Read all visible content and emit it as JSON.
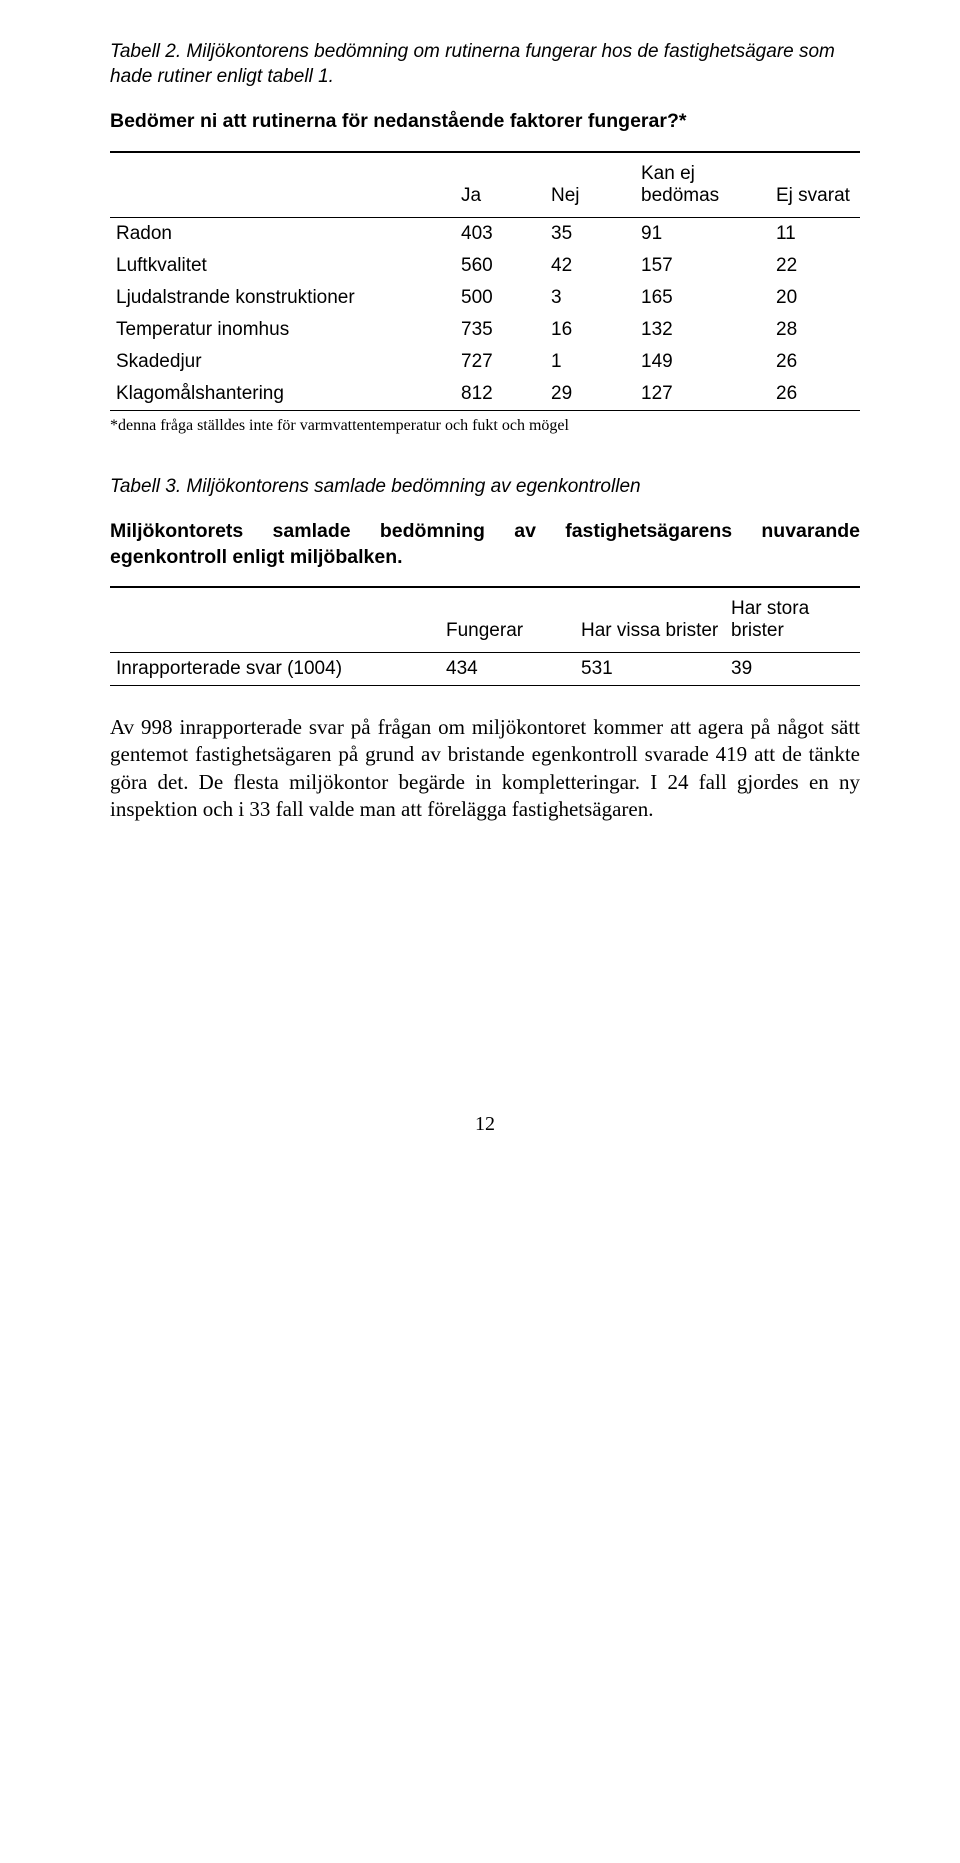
{
  "table2": {
    "caption": "Tabell 2. Miljökontorens bedömning om rutinerna fungerar hos de fastighetsägare som hade rutiner enligt tabell 1.",
    "heading": "Bedömer ni att rutinerna för nedanstående faktorer fungerar?*",
    "columns": [
      "",
      "Ja",
      "Nej",
      "Kan ej bedömas",
      "Ej svarat"
    ],
    "rows": [
      {
        "label": "Radon",
        "v": [
          "403",
          "35",
          "91",
          "11"
        ]
      },
      {
        "label": "Luftkvalitet",
        "v": [
          "560",
          "42",
          "157",
          "22"
        ]
      },
      {
        "label": "Ljudalstrande konstruktioner",
        "v": [
          "500",
          "3",
          "165",
          "20"
        ]
      },
      {
        "label": "Temperatur inomhus",
        "v": [
          "735",
          "16",
          "132",
          "28"
        ]
      },
      {
        "label": "Skadedjur",
        "v": [
          "727",
          "1",
          "149",
          "26"
        ]
      },
      {
        "label": "Klagomålshantering",
        "v": [
          "812",
          "29",
          "127",
          "26"
        ]
      }
    ],
    "footnote": "*denna fråga ställdes inte för varmvattentemperatur och fukt och mögel"
  },
  "table3": {
    "caption": "Tabell 3. Miljökontorens samlade bedömning av egenkontrollen",
    "heading": "Miljökontorets samlade bedömning av fastighetsägarens nuvarande egenkontroll enligt miljöbalken.",
    "columns": [
      "",
      "Fungerar",
      "Har vissa brister",
      "Har stora brister"
    ],
    "rows": [
      {
        "label": "Inrapporterade svar (1004)",
        "v": [
          "434",
          "531",
          "39"
        ]
      }
    ]
  },
  "paragraph": "Av 998 inrapporterade svar på frågan om miljökontoret kommer att agera på något sätt gentemot fastighetsägaren på grund av bristande egenkontroll svarade 419 att de tänkte göra det. De flesta miljökontor begärde in kompletteringar. I 24 fall gjordes en ny inspektion och i 33 fall valde man att förelägga fastighetsägaren.",
  "page_number": "12"
}
